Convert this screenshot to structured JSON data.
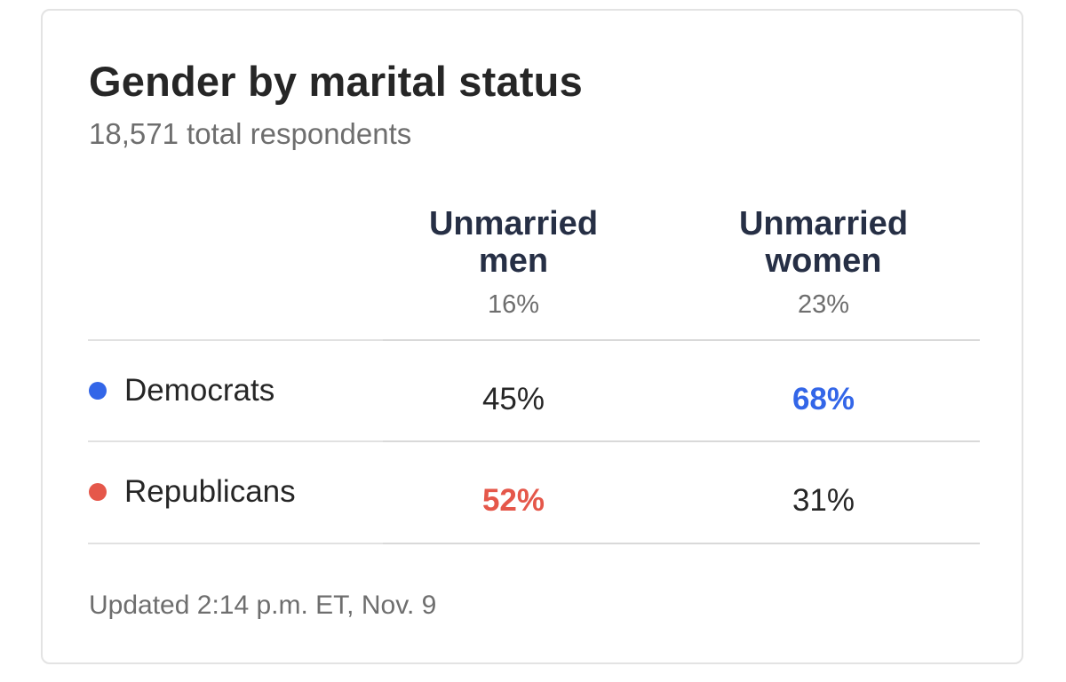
{
  "card": {
    "title": "Gender by marital status",
    "subtitle": "18,571 total respondents",
    "updated": "Updated 2:14 p.m. ET, Nov. 9"
  },
  "columns": [
    {
      "label_line1": "Unmarried",
      "label_line2": "men",
      "share": "16%"
    },
    {
      "label_line1": "Unmarried",
      "label_line2": "women",
      "share": "23%"
    }
  ],
  "rows": [
    {
      "label": "Democrats",
      "dot_color": "#3366e8",
      "values": [
        "45%",
        "68%"
      ],
      "highlight_col": 1,
      "highlight_color": "#3366e8"
    },
    {
      "label": "Republicans",
      "dot_color": "#e5574a",
      "values": [
        "52%",
        "31%"
      ],
      "highlight_col": 0,
      "highlight_color": "#e5574a"
    }
  ],
  "colors": {
    "democrat": "#3366e8",
    "republican": "#e5574a",
    "heading": "#262f45",
    "muted": "#6e6e6e"
  }
}
